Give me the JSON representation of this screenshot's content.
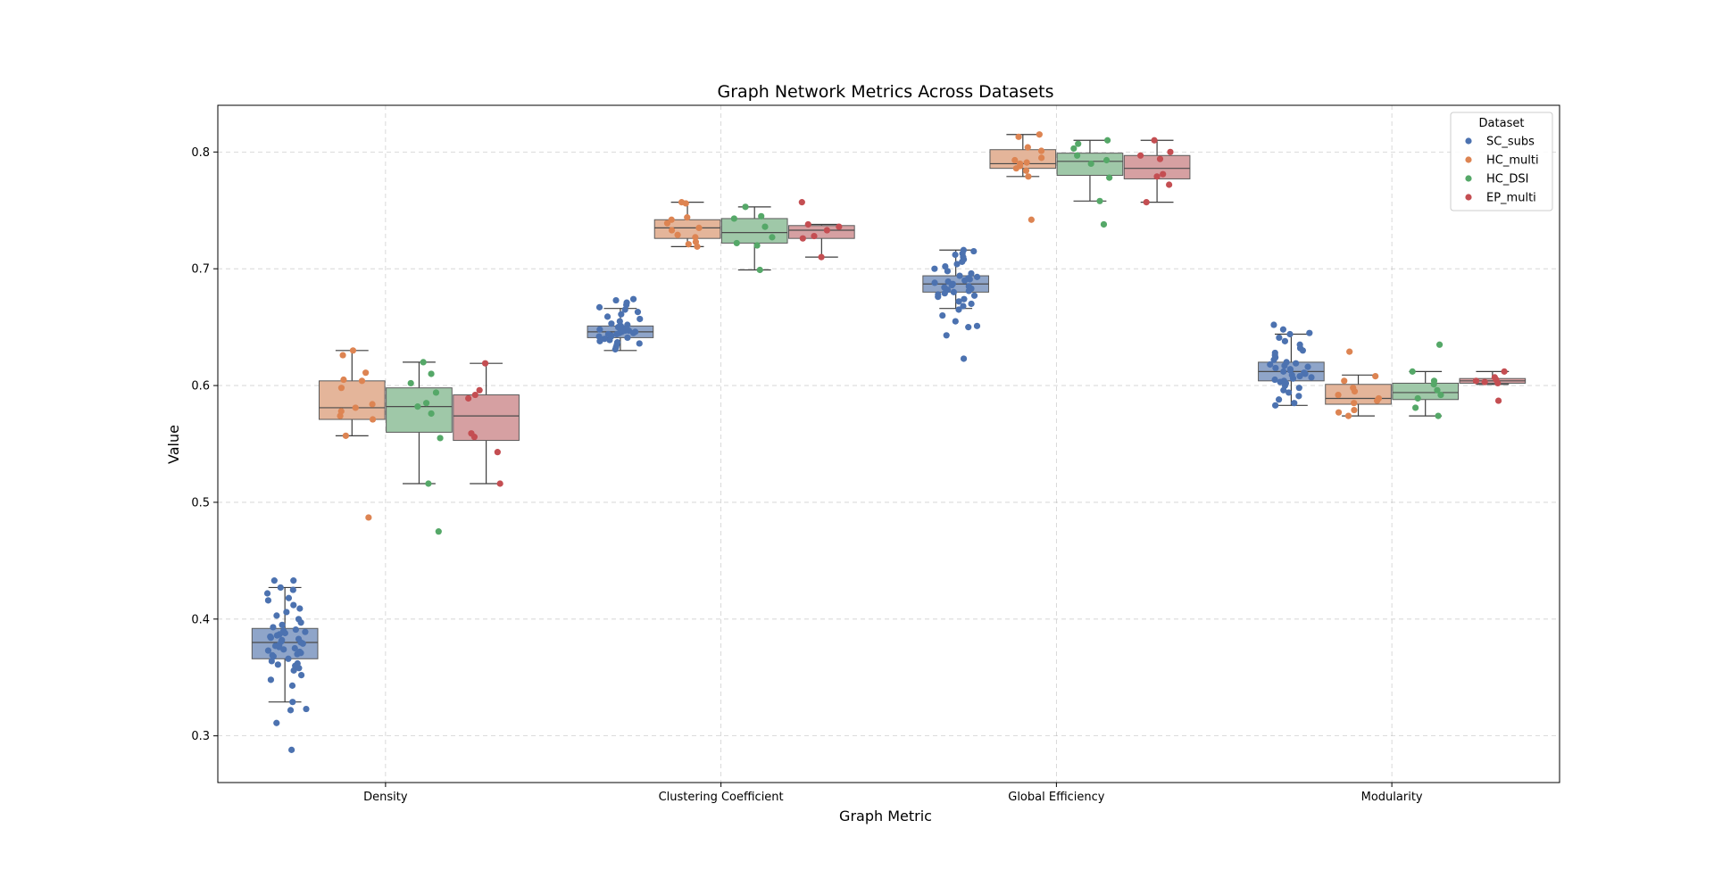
{
  "chart_data": {
    "type": "box",
    "title": "Graph Network Metrics Across Datasets",
    "xlabel": "Graph Metric",
    "ylabel": "Value",
    "ylim": [
      0.26,
      0.84
    ],
    "yticks": [
      0.3,
      0.4,
      0.5,
      0.6,
      0.7,
      0.8
    ],
    "ytick_labels": [
      "0.3",
      "0.4",
      "0.5",
      "0.6",
      "0.7",
      "0.8"
    ],
    "grid": true,
    "categories": [
      "Density",
      "Clustering Coefficient",
      "Global Efficiency",
      "Modularity"
    ],
    "legend": {
      "title": "Dataset",
      "position": "top-right"
    },
    "series": [
      {
        "name": "SC_subs",
        "color": "#4c72b0",
        "box_color": "#8fa5c9",
        "stats": [
          {
            "q1": 0.366,
            "median": 0.38,
            "q3": 0.392,
            "whisker_low": 0.329,
            "whisker_high": 0.427
          },
          {
            "q1": 0.641,
            "median": 0.646,
            "q3": 0.651,
            "whisker_low": 0.63,
            "whisker_high": 0.666
          },
          {
            "q1": 0.68,
            "median": 0.687,
            "q3": 0.694,
            "whisker_low": 0.666,
            "whisker_high": 0.716
          },
          {
            "q1": 0.604,
            "median": 0.612,
            "q3": 0.62,
            "whisker_low": 0.583,
            "whisker_high": 0.644
          }
        ],
        "points": [
          [
            0.288,
            0.311,
            0.322,
            0.323,
            0.329,
            0.343,
            0.348,
            0.352,
            0.356,
            0.358,
            0.36,
            0.361,
            0.362,
            0.364,
            0.366,
            0.368,
            0.369,
            0.37,
            0.371,
            0.372,
            0.373,
            0.374,
            0.375,
            0.376,
            0.377,
            0.378,
            0.379,
            0.38,
            0.381,
            0.382,
            0.383,
            0.384,
            0.385,
            0.386,
            0.387,
            0.388,
            0.389,
            0.39,
            0.391,
            0.393,
            0.395,
            0.397,
            0.4,
            0.403,
            0.406,
            0.409,
            0.412,
            0.416,
            0.418,
            0.422,
            0.425,
            0.427,
            0.433,
            0.433
          ],
          [
            0.631,
            0.633,
            0.635,
            0.636,
            0.637,
            0.638,
            0.639,
            0.64,
            0.641,
            0.642,
            0.642,
            0.643,
            0.644,
            0.644,
            0.645,
            0.645,
            0.646,
            0.646,
            0.647,
            0.647,
            0.648,
            0.649,
            0.65,
            0.651,
            0.652,
            0.653,
            0.655,
            0.657,
            0.659,
            0.661,
            0.663,
            0.665,
            0.667,
            0.669,
            0.671,
            0.673,
            0.674
          ],
          [
            0.623,
            0.643,
            0.65,
            0.651,
            0.655,
            0.66,
            0.665,
            0.668,
            0.67,
            0.672,
            0.674,
            0.676,
            0.677,
            0.678,
            0.679,
            0.68,
            0.681,
            0.682,
            0.683,
            0.684,
            0.685,
            0.686,
            0.687,
            0.688,
            0.689,
            0.69,
            0.691,
            0.692,
            0.693,
            0.694,
            0.696,
            0.698,
            0.7,
            0.702,
            0.704,
            0.706,
            0.708,
            0.71,
            0.712,
            0.713,
            0.715,
            0.716
          ],
          [
            0.583,
            0.585,
            0.588,
            0.591,
            0.594,
            0.596,
            0.598,
            0.6,
            0.602,
            0.603,
            0.604,
            0.605,
            0.606,
            0.607,
            0.608,
            0.609,
            0.61,
            0.611,
            0.612,
            0.613,
            0.614,
            0.615,
            0.616,
            0.617,
            0.618,
            0.619,
            0.62,
            0.622,
            0.624,
            0.626,
            0.628,
            0.63,
            0.632,
            0.635,
            0.638,
            0.641,
            0.644,
            0.645,
            0.648,
            0.652
          ]
        ]
      },
      {
        "name": "HC_multi",
        "color": "#dd8452",
        "box_color": "#e4b59a",
        "stats": [
          {
            "q1": 0.571,
            "median": 0.581,
            "q3": 0.604,
            "whisker_low": 0.557,
            "whisker_high": 0.63
          },
          {
            "q1": 0.726,
            "median": 0.735,
            "q3": 0.742,
            "whisker_low": 0.719,
            "whisker_high": 0.757
          },
          {
            "q1": 0.786,
            "median": 0.79,
            "q3": 0.802,
            "whisker_low": 0.779,
            "whisker_high": 0.815
          },
          {
            "q1": 0.584,
            "median": 0.589,
            "q3": 0.601,
            "whisker_low": 0.574,
            "whisker_high": 0.609
          }
        ],
        "points": [
          [
            0.487,
            0.557,
            0.571,
            0.574,
            0.578,
            0.581,
            0.584,
            0.598,
            0.604,
            0.605,
            0.611,
            0.626,
            0.63
          ],
          [
            0.719,
            0.721,
            0.723,
            0.727,
            0.729,
            0.733,
            0.735,
            0.739,
            0.742,
            0.744,
            0.756,
            0.757
          ],
          [
            0.742,
            0.779,
            0.784,
            0.786,
            0.788,
            0.79,
            0.791,
            0.793,
            0.795,
            0.801,
            0.804,
            0.813,
            0.815
          ],
          [
            0.574,
            0.577,
            0.579,
            0.585,
            0.587,
            0.589,
            0.592,
            0.595,
            0.598,
            0.604,
            0.608,
            0.629
          ]
        ]
      },
      {
        "name": "HC_DSI",
        "color": "#55a868",
        "box_color": "#9fc8a8",
        "stats": [
          {
            "q1": 0.56,
            "median": 0.582,
            "q3": 0.598,
            "whisker_low": 0.516,
            "whisker_high": 0.62
          },
          {
            "q1": 0.722,
            "median": 0.731,
            "q3": 0.743,
            "whisker_low": 0.699,
            "whisker_high": 0.753
          },
          {
            "q1": 0.78,
            "median": 0.792,
            "q3": 0.799,
            "whisker_low": 0.758,
            "whisker_high": 0.81
          },
          {
            "q1": 0.588,
            "median": 0.594,
            "q3": 0.602,
            "whisker_low": 0.574,
            "whisker_high": 0.612
          }
        ],
        "points": [
          [
            0.475,
            0.516,
            0.555,
            0.576,
            0.582,
            0.585,
            0.594,
            0.602,
            0.61,
            0.62
          ],
          [
            0.699,
            0.72,
            0.722,
            0.727,
            0.736,
            0.743,
            0.745,
            0.753
          ],
          [
            0.738,
            0.758,
            0.778,
            0.79,
            0.793,
            0.797,
            0.803,
            0.807,
            0.81
          ],
          [
            0.574,
            0.581,
            0.589,
            0.592,
            0.596,
            0.601,
            0.604,
            0.612,
            0.635
          ]
        ]
      },
      {
        "name": "EP_multi",
        "color": "#c44e52",
        "box_color": "#d6a0a2",
        "stats": [
          {
            "q1": 0.553,
            "median": 0.574,
            "q3": 0.592,
            "whisker_low": 0.516,
            "whisker_high": 0.619
          },
          {
            "q1": 0.726,
            "median": 0.733,
            "q3": 0.737,
            "whisker_low": 0.71,
            "whisker_high": 0.738
          },
          {
            "q1": 0.777,
            "median": 0.786,
            "q3": 0.797,
            "whisker_low": 0.757,
            "whisker_high": 0.81
          },
          {
            "q1": 0.602,
            "median": 0.604,
            "q3": 0.606,
            "whisker_low": 0.601,
            "whisker_high": 0.612
          }
        ],
        "points": [
          [
            0.516,
            0.543,
            0.556,
            0.559,
            0.589,
            0.592,
            0.596,
            0.619
          ],
          [
            0.71,
            0.726,
            0.728,
            0.733,
            0.736,
            0.738,
            0.757
          ],
          [
            0.757,
            0.772,
            0.779,
            0.781,
            0.794,
            0.797,
            0.8,
            0.81
          ],
          [
            0.587,
            0.602,
            0.603,
            0.604,
            0.605,
            0.607,
            0.612
          ]
        ]
      }
    ]
  }
}
